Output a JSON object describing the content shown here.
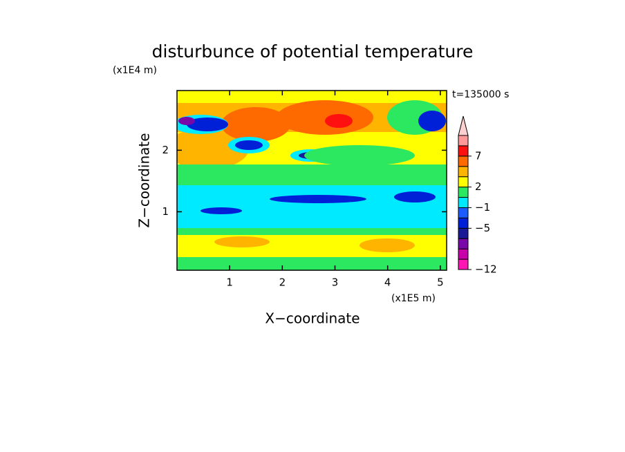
{
  "chart_data": {
    "type": "contour",
    "title": "disturbunce of potential temperature",
    "y_unit": "(x1E4 m)",
    "x_unit": "(x1E5 m)",
    "time_label": "t=135000 s",
    "xlabel": "X−coordinate",
    "ylabel": "Z−coordinate",
    "xlim": [
      0,
      5.12
    ],
    "xticks": [
      1,
      2,
      3,
      4,
      5
    ],
    "ylim": [
      0.05,
      2.97
    ],
    "yticks": [
      1,
      2
    ],
    "colorbar": {
      "levels": [
        -12,
        null,
        null,
        null,
        -5,
        null,
        -1,
        null,
        2,
        null,
        null,
        7,
        null,
        null
      ],
      "level_labels": [
        "−12",
        null,
        null,
        null,
        "−5",
        null,
        "−1",
        null,
        "2",
        null,
        null,
        "7",
        null,
        null
      ],
      "colors": [
        "#ff14b4",
        "#c800aa",
        "#7a08a8",
        "#1a1a96",
        "#0020d8",
        "#1c5cff",
        "#00eaff",
        "#2ce860",
        "#ffff00",
        "#ffb400",
        "#ff6a00",
        "#ff1010",
        "#ff9898"
      ],
      "extend_color": "#ffd0d0"
    }
  }
}
